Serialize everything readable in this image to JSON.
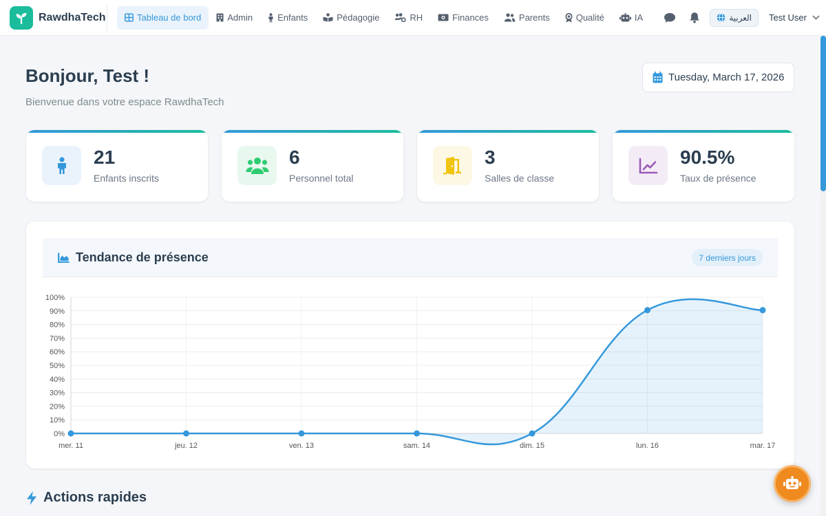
{
  "app": {
    "name": "RawdhaTech"
  },
  "nav": {
    "items": [
      {
        "label": "Tableau de bord",
        "icon": "grid-icon",
        "active": true
      },
      {
        "label": "Admin",
        "icon": "building-icon"
      },
      {
        "label": "Enfants",
        "icon": "child-icon"
      },
      {
        "label": "Pédagogie",
        "icon": "book-reader-icon"
      },
      {
        "label": "RH",
        "icon": "users-cog-icon"
      },
      {
        "label": "Finances",
        "icon": "money-icon"
      },
      {
        "label": "Parents",
        "icon": "parents-icon"
      },
      {
        "label": "Qualité",
        "icon": "award-icon"
      },
      {
        "label": "IA",
        "icon": "robot-icon"
      }
    ],
    "language": "العربية",
    "user": "Test User"
  },
  "header": {
    "greeting": "Bonjour, Test !",
    "subtitle": "Bienvenue dans votre espace RawdhaTech",
    "date": "Tuesday, March 17, 2026"
  },
  "stats": [
    {
      "value": "21",
      "label": "Enfants inscrits",
      "icon": "child-icon",
      "color": "#3498db",
      "bg": "#eaf3fb"
    },
    {
      "value": "6",
      "label": "Personnel total",
      "icon": "users-icon",
      "color": "#2ecc71",
      "bg": "#e9f8ef"
    },
    {
      "value": "3",
      "label": "Salles de classe",
      "icon": "door-icon",
      "color": "#f1c40f",
      "bg": "#fdf8e4"
    },
    {
      "value": "90.5%",
      "label": "Taux de présence",
      "icon": "chart-line-icon",
      "color": "#9b59b6",
      "bg": "#f3ecf7"
    }
  ],
  "attendance": {
    "title": "Tendance de présence",
    "badge": "7 derniers jours"
  },
  "chart_data": {
    "type": "area",
    "categories": [
      "mer. 11",
      "jeu. 12",
      "ven. 13",
      "sam. 14",
      "dim. 15",
      "lun. 16",
      "mar. 17"
    ],
    "series": [
      {
        "values": [
          0,
          0,
          0,
          0,
          0,
          90.5,
          90.5
        ],
        "color": "#3498db"
      }
    ],
    "ylim": [
      0,
      100
    ],
    "yticks": [
      "0%",
      "10%",
      "20%",
      "30%",
      "40%",
      "50%",
      "60%",
      "70%",
      "80%",
      "90%",
      "100%"
    ],
    "grid": true,
    "title": ""
  },
  "quick_actions": {
    "title": "Actions rapides"
  },
  "colors": {
    "accent": "#3498db",
    "brand": "#1abc9c",
    "fab": "#ef8a1f"
  }
}
